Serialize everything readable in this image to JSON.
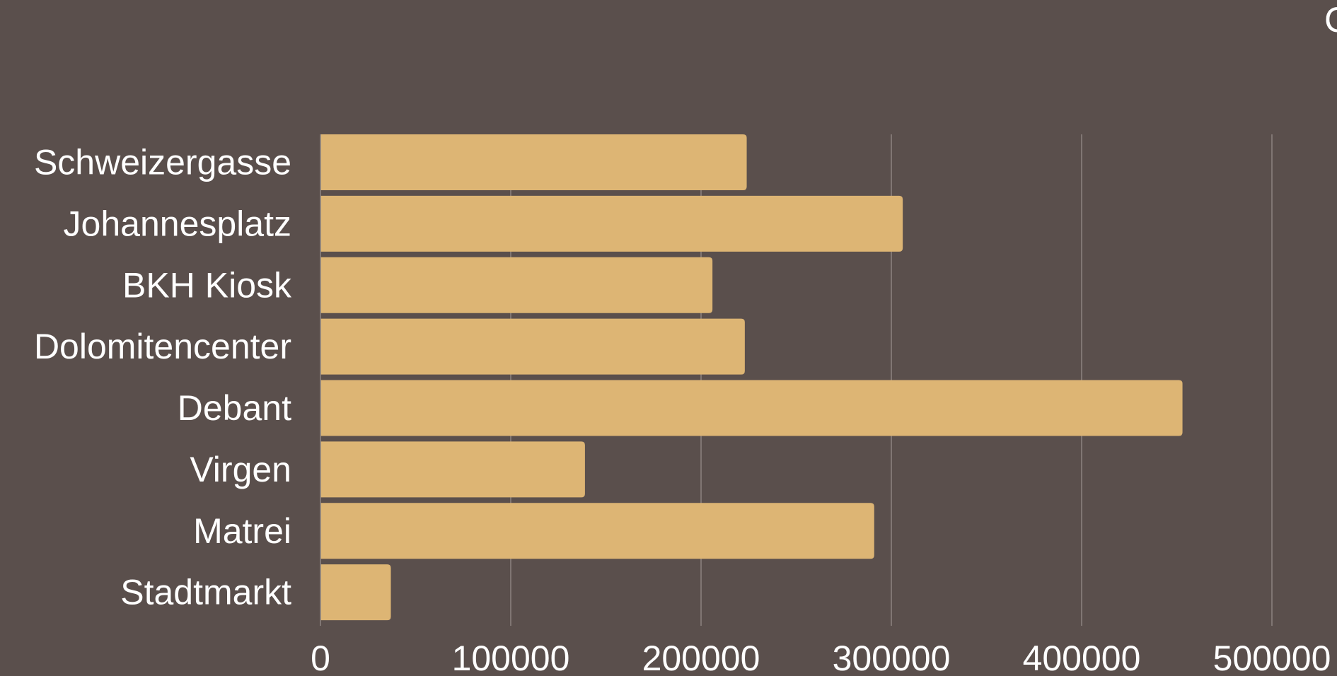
{
  "colors": {
    "background": "#5a4f4c",
    "bar": "#ddb574",
    "grid": "#8c8380",
    "text": "#ffffff"
  },
  "corner_label": "C",
  "chart_data": {
    "type": "bar",
    "orientation": "horizontal",
    "title": "",
    "xlabel": "",
    "ylabel": "",
    "categories": [
      "Schweizergasse",
      "Johannesplatz",
      "BKH Kiosk",
      "Dolomitencenter",
      "Debant",
      "Virgen",
      "Matrei",
      "Stadtmarkt"
    ],
    "values": [
      224000,
      306000,
      206000,
      223000,
      453000,
      139000,
      291000,
      37000
    ],
    "xlim": [
      0,
      500000
    ],
    "xticks": [
      "0",
      "100000",
      "200000",
      "300000",
      "400000",
      "500000"
    ],
    "grid": true,
    "legend": "none"
  }
}
